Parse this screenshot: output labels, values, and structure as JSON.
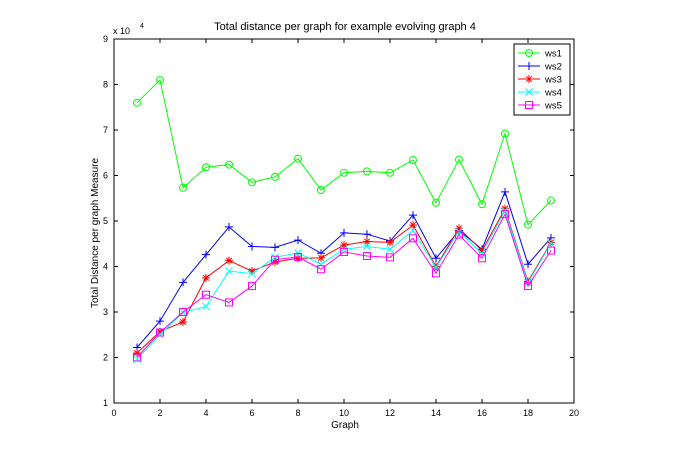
{
  "chart_data": {
    "type": "line",
    "title": "Total distance per graph for example evolving graph 4",
    "xlabel": "Graph",
    "ylabel": "Total Distance per graph Measure",
    "y_multiplier_base": "x 10",
    "y_multiplier_exp": "4",
    "xlim": [
      0,
      20
    ],
    "ylim": [
      1,
      9
    ],
    "xticks": [
      0,
      2,
      4,
      6,
      8,
      10,
      12,
      14,
      16,
      18,
      20
    ],
    "yticks": [
      1,
      2,
      3,
      4,
      5,
      6,
      7,
      8,
      9
    ],
    "grid": false,
    "legend_position": "top-right",
    "x": [
      1,
      2,
      3,
      4,
      5,
      6,
      7,
      8,
      9,
      10,
      11,
      12,
      13,
      14,
      15,
      16,
      17,
      18,
      19
    ],
    "series": [
      {
        "name": "ws1",
        "color": "#00ff00",
        "marker": "circle",
        "values": [
          7.6,
          8.1,
          5.73,
          6.18,
          6.24,
          5.85,
          5.97,
          6.37,
          5.68,
          6.06,
          6.09,
          6.06,
          6.34,
          5.4,
          6.35,
          5.37,
          6.92,
          4.92,
          5.45
        ]
      },
      {
        "name": "ws2",
        "color": "#0000ff",
        "marker": "plus",
        "values": [
          2.22,
          2.8,
          3.65,
          4.26,
          4.87,
          4.44,
          4.42,
          4.58,
          4.29,
          4.74,
          4.71,
          4.56,
          5.13,
          4.18,
          4.79,
          4.38,
          5.64,
          4.05,
          4.63
        ]
      },
      {
        "name": "ws3",
        "color": "#ff0000",
        "marker": "star",
        "values": [
          2.1,
          2.57,
          2.78,
          3.75,
          4.13,
          3.9,
          4.1,
          4.18,
          4.19,
          4.47,
          4.55,
          4.53,
          4.91,
          4.0,
          4.84,
          4.35,
          5.27,
          3.67,
          4.53
        ]
      },
      {
        "name": "ws4",
        "color": "#00ffff",
        "marker": "x",
        "values": [
          1.96,
          2.5,
          2.99,
          3.12,
          3.9,
          3.84,
          4.2,
          4.3,
          4.05,
          4.38,
          4.44,
          4.38,
          4.79,
          3.98,
          4.77,
          4.28,
          5.23,
          3.64,
          4.51
        ]
      },
      {
        "name": "ws5",
        "color": "#ff00ff",
        "marker": "square",
        "values": [
          2.0,
          2.55,
          3.0,
          3.38,
          3.21,
          3.57,
          4.15,
          4.21,
          3.94,
          4.32,
          4.23,
          4.2,
          4.62,
          3.85,
          4.7,
          4.18,
          5.15,
          3.57,
          4.35
        ]
      }
    ]
  }
}
